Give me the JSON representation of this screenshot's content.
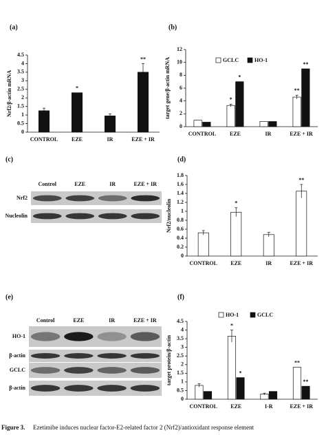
{
  "chart_data": [
    {
      "type": "bar",
      "label": "(a)",
      "ylabel": "Nrf2/β-actin mRNA",
      "categories": [
        "CONTROL",
        "EZE",
        "IR",
        "EZE + IR"
      ],
      "series": [
        {
          "color": "#111111",
          "values": [
            1.25,
            2.3,
            0.95,
            3.5
          ],
          "errors": [
            0.15,
            null,
            0.12,
            0.5
          ],
          "annotations": [
            null,
            "*",
            null,
            "**"
          ]
        }
      ],
      "ylim": [
        0,
        4.5
      ],
      "yticks": [
        0,
        0.5,
        1,
        1.5,
        2,
        2.5,
        3,
        3.5,
        4,
        4.5
      ]
    },
    {
      "type": "bar",
      "label": "(b)",
      "ylabel": "target gene/β-actin mRNA",
      "categories": [
        "CONTROL",
        "EZE",
        "IR",
        "EZE + IR"
      ],
      "series": [
        {
          "name": "GCLC",
          "color": "#ffffff",
          "values": [
            1.0,
            3.3,
            0.8,
            4.6
          ],
          "errors": [
            null,
            0.2,
            null,
            0.3
          ],
          "annotations": [
            null,
            "*",
            null,
            "**"
          ]
        },
        {
          "name": "HO-1",
          "color": "#111111",
          "values": [
            0.7,
            7.0,
            0.8,
            9.0
          ],
          "errors": [
            null,
            null,
            null,
            null
          ],
          "annotations": [
            null,
            "*",
            null,
            "**"
          ]
        }
      ],
      "ylim": [
        0,
        12
      ],
      "yticks": [
        0,
        2,
        4,
        6,
        8,
        10,
        12
      ]
    },
    {
      "type": "bar",
      "label": "(d)",
      "ylabel": "Nrf2/nucleolin",
      "categories": [
        "CONTROL",
        "EZE",
        "IR",
        "EZE + IR"
      ],
      "series": [
        {
          "color": "#ffffff",
          "values": [
            0.52,
            0.98,
            0.48,
            1.45
          ],
          "errors": [
            0.05,
            0.1,
            0.05,
            0.15
          ],
          "annotations": [
            null,
            "*",
            null,
            "**"
          ]
        }
      ],
      "ylim": [
        0,
        1.8
      ],
      "yticks": [
        0,
        0.2,
        0.4,
        0.6,
        0.8,
        1,
        1.2,
        1.4,
        1.6,
        1.8
      ]
    },
    {
      "type": "bar",
      "label": "(f)",
      "ylabel": "target protein/β-actin",
      "categories": [
        "CONTROL",
        "EZE",
        "I-R",
        "EZE + IR"
      ],
      "series": [
        {
          "name": "HO-1",
          "color": "#ffffff",
          "values": [
            0.8,
            3.65,
            0.3,
            1.85
          ],
          "errors": [
            0.1,
            0.35,
            0.05,
            null
          ],
          "annotations": [
            null,
            "*",
            null,
            "**"
          ]
        },
        {
          "name": "GCLC",
          "color": "#111111",
          "values": [
            0.45,
            1.25,
            0.45,
            0.75
          ],
          "errors": [
            null,
            null,
            null,
            null
          ],
          "annotations": [
            null,
            "*",
            null,
            "**"
          ]
        }
      ],
      "ylim": [
        0,
        4.5
      ],
      "yticks": [
        0,
        0.5,
        1,
        1.5,
        2,
        2.5,
        3,
        3.5,
        4,
        4.5
      ]
    }
  ],
  "blots": [
    {
      "label": "(c)",
      "lanes": [
        "Control",
        "EZE",
        "IR",
        "EZE + IR"
      ],
      "rows": [
        "Nrf2",
        "Nucleolin"
      ]
    },
    {
      "label": "(e)",
      "lanes": [
        "Control",
        "EZE",
        "IR",
        "EZE + IR"
      ],
      "rows": [
        "HO-1",
        "β-actin",
        "GCLC",
        "β-actin"
      ]
    }
  ],
  "caption": {
    "bold": "Figure 3.",
    "text": "Ezetimibe induces nuclear factor-E2-related factor 2 (Nrf2)/antioxidant response element"
  }
}
